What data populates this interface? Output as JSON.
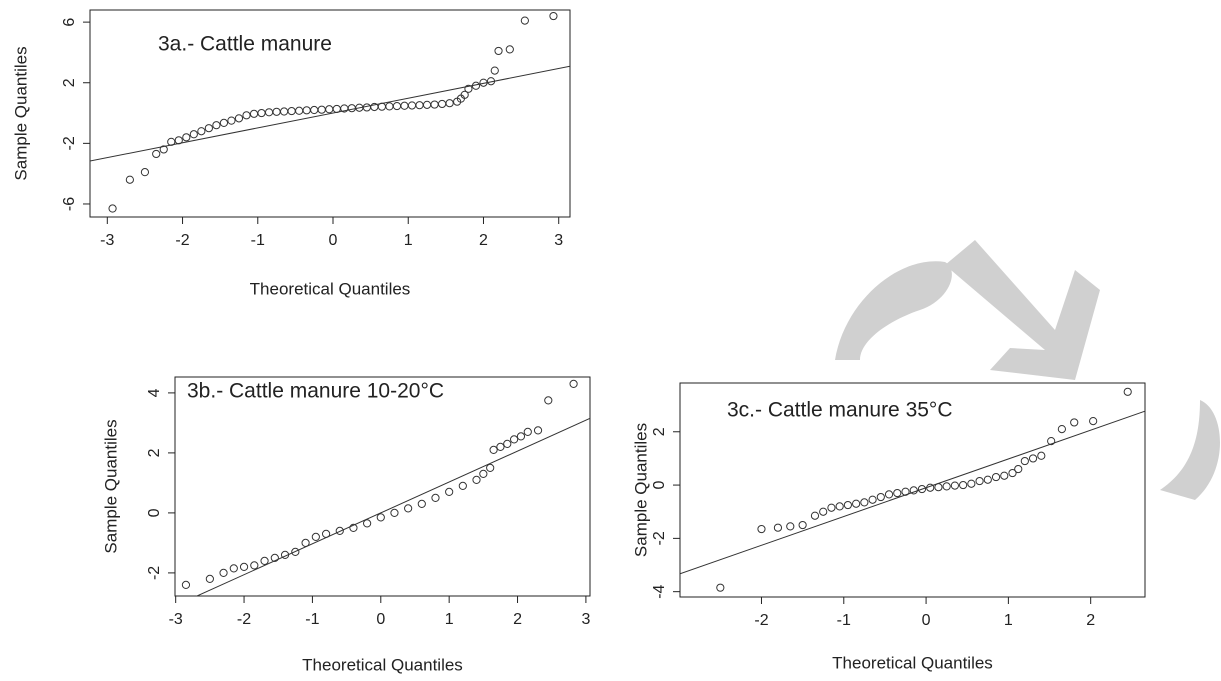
{
  "chart_data": [
    {
      "type": "scatter",
      "title": "3a.- Cattle manure",
      "x_label": "Theoretical Quantiles",
      "y_label": "Sample Quantiles",
      "x": [
        -2.93,
        -2.7,
        -2.5,
        -2.35,
        -2.25,
        -2.15,
        -2.05,
        -1.95,
        -1.85,
        -1.75,
        -1.65,
        -1.55,
        -1.45,
        -1.35,
        -1.25,
        -1.15,
        -1.05,
        -0.95,
        -0.85,
        -0.75,
        -0.65,
        -0.55,
        -0.45,
        -0.35,
        -0.25,
        -0.15,
        -0.05,
        0.05,
        0.15,
        0.25,
        0.35,
        0.45,
        0.55,
        0.65,
        0.75,
        0.85,
        0.95,
        1.05,
        1.15,
        1.25,
        1.35,
        1.45,
        1.55,
        1.65,
        1.7,
        1.75,
        1.8,
        1.9,
        2.0,
        2.1,
        2.15,
        2.2,
        2.35,
        2.55,
        2.93
      ],
      "values": [
        -6.3,
        -4.4,
        -3.9,
        -2.7,
        -2.4,
        -1.9,
        -1.8,
        -1.6,
        -1.4,
        -1.2,
        -1.0,
        -0.8,
        -0.65,
        -0.5,
        -0.35,
        -0.15,
        -0.05,
        0.0,
        0.05,
        0.08,
        0.1,
        0.13,
        0.15,
        0.18,
        0.2,
        0.22,
        0.25,
        0.27,
        0.3,
        0.32,
        0.35,
        0.37,
        0.4,
        0.42,
        0.44,
        0.46,
        0.48,
        0.5,
        0.52,
        0.54,
        0.56,
        0.6,
        0.65,
        0.75,
        0.95,
        1.2,
        1.6,
        1.8,
        2.0,
        2.1,
        2.8,
        4.1,
        4.2,
        6.1,
        6.4
      ],
      "qqline": {
        "intercept": 0,
        "slope": 0.98
      },
      "xlim": [
        -3.23,
        3.15
      ],
      "ylim": [
        -6.86,
        6.8
      ],
      "xticks": [
        -3,
        -2,
        -1,
        0,
        1,
        2,
        3
      ],
      "yticks": [
        -6,
        -2,
        2,
        6
      ]
    },
    {
      "type": "scatter",
      "title": "3b.- Cattle manure 10-20°C",
      "x_label": "Theoretical Quantiles",
      "y_label": "Sample Quantiles",
      "x": [
        -2.85,
        -2.5,
        -2.3,
        -2.15,
        -2.0,
        -1.85,
        -1.7,
        -1.55,
        -1.4,
        -1.25,
        -1.1,
        -0.95,
        -0.8,
        -0.6,
        -0.4,
        -0.2,
        0.0,
        0.2,
        0.4,
        0.6,
        0.8,
        1.0,
        1.2,
        1.4,
        1.5,
        1.6,
        1.65,
        1.75,
        1.85,
        1.95,
        2.05,
        2.15,
        2.3,
        2.45,
        2.82
      ],
      "values": [
        -2.4,
        -2.2,
        -2.0,
        -1.85,
        -1.8,
        -1.75,
        -1.6,
        -1.5,
        -1.4,
        -1.3,
        -1.0,
        -0.8,
        -0.7,
        -0.6,
        -0.5,
        -0.35,
        -0.15,
        0.0,
        0.15,
        0.3,
        0.5,
        0.7,
        0.9,
        1.1,
        1.3,
        1.5,
        2.1,
        2.2,
        2.3,
        2.45,
        2.55,
        2.7,
        2.75,
        3.75,
        4.3
      ],
      "qqline": {
        "intercept": 0,
        "slope": 1.03
      },
      "xlim": [
        -3.01,
        3.06
      ],
      "ylim": [
        -2.77,
        4.53
      ],
      "xticks": [
        -3,
        -2,
        -1,
        0,
        1,
        2,
        3
      ],
      "yticks": [
        -2,
        0,
        2,
        4
      ]
    },
    {
      "type": "scatter",
      "title": "3c.- Cattle manure 35°C",
      "x_label": "Theoretical Quantiles",
      "y_label": "Sample Quantiles",
      "x": [
        -2.5,
        -2.0,
        -1.8,
        -1.65,
        -1.5,
        -1.35,
        -1.25,
        -1.15,
        -1.05,
        -0.95,
        -0.85,
        -0.75,
        -0.65,
        -0.55,
        -0.45,
        -0.35,
        -0.25,
        -0.15,
        -0.05,
        0.05,
        0.15,
        0.25,
        0.35,
        0.45,
        0.55,
        0.65,
        0.75,
        0.85,
        0.95,
        1.05,
        1.12,
        1.2,
        1.3,
        1.4,
        1.52,
        1.65,
        1.8,
        2.03,
        2.45
      ],
      "values": [
        -3.85,
        -1.65,
        -1.6,
        -1.55,
        -1.5,
        -1.15,
        -1.0,
        -0.85,
        -0.8,
        -0.75,
        -0.7,
        -0.65,
        -0.55,
        -0.45,
        -0.35,
        -0.3,
        -0.25,
        -0.2,
        -0.15,
        -0.1,
        -0.08,
        -0.05,
        -0.02,
        0.0,
        0.05,
        0.15,
        0.2,
        0.3,
        0.35,
        0.45,
        0.6,
        0.9,
        1.0,
        1.1,
        1.65,
        2.1,
        2.35,
        2.4,
        3.5
      ],
      "qqline": {
        "intercept": -0.1,
        "slope": 1.08
      },
      "xlim": [
        -2.99,
        2.66
      ],
      "ylim": [
        -4.2,
        3.83
      ],
      "xticks": [
        -2,
        -1,
        0,
        1,
        2
      ],
      "yticks": [
        -4,
        -2,
        0,
        2
      ]
    }
  ]
}
